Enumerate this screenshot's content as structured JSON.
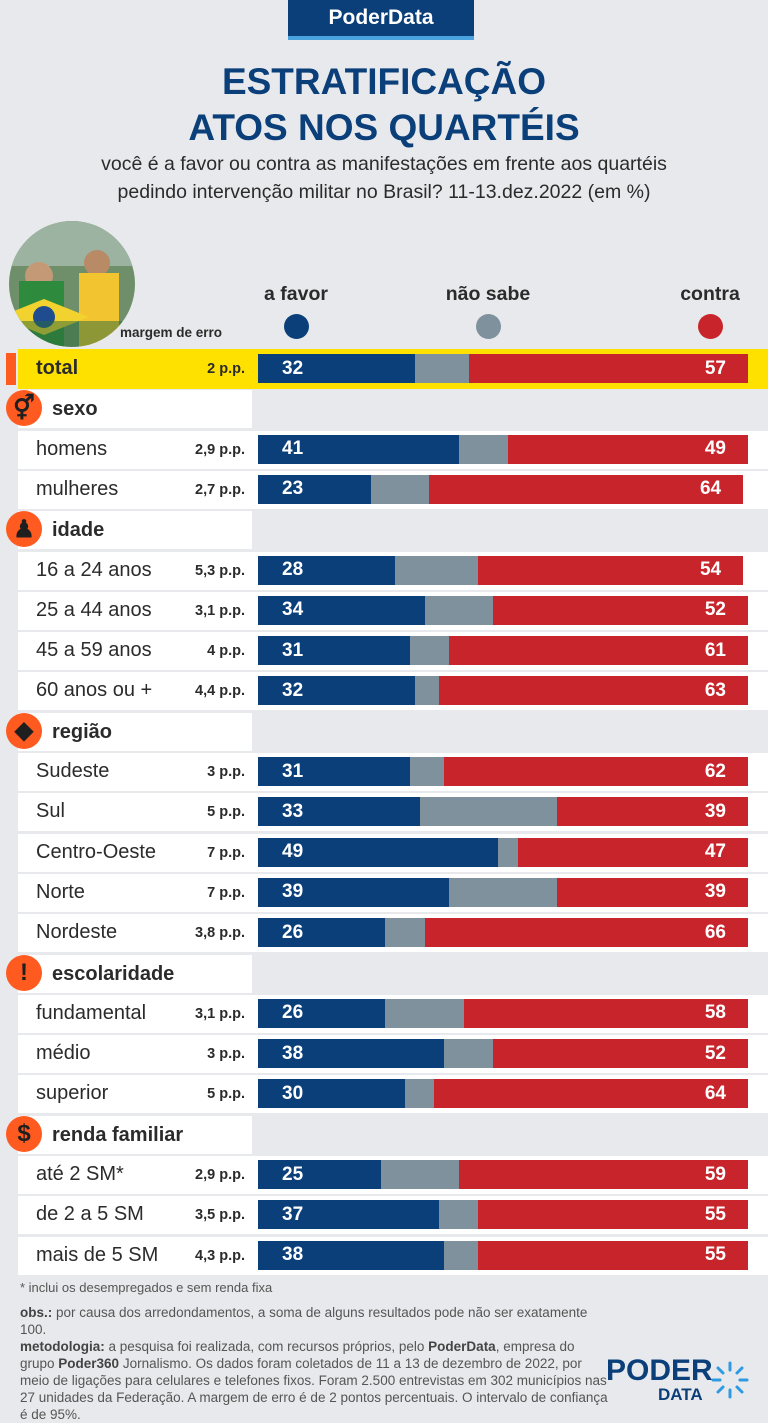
{
  "header": {
    "brand": "PoderData",
    "title_line1": "ESTRATIFICAÇÃO",
    "title_line2": "ATOS NOS QUARTÉIS",
    "subtitle_line1": "você é a favor ou contra as manifestações em frente aos quartéis",
    "subtitle_line2": "pedindo intervenção militar no Brasil?  11-13.dez.2022 (em %)",
    "margin_label": "margem de erro"
  },
  "legend": {
    "favor": {
      "label": "a favor",
      "color": "#0b3f7a"
    },
    "nao_sabe": {
      "label": "não sabe",
      "color": "#7e919c"
    },
    "contra": {
      "label": "contra",
      "color": "#c8242b"
    }
  },
  "chart_data": {
    "type": "bar",
    "stacked": true,
    "orientation": "horizontal",
    "series": [
      {
        "name": "a favor"
      },
      {
        "name": "não sabe"
      },
      {
        "name": "contra"
      }
    ],
    "sections": [
      {
        "label": "",
        "icon": "none",
        "rows": [
          {
            "label": "total",
            "margin": "2 p.p.",
            "favor": 32,
            "nao_sabe": 11,
            "contra": 57,
            "highlight": true
          }
        ]
      },
      {
        "label": "sexo",
        "icon": "gender-icon",
        "rows": [
          {
            "label": "homens",
            "margin": "2,9 p.p.",
            "favor": 41,
            "nao_sabe": 10,
            "contra": 49
          },
          {
            "label": "mulheres",
            "margin": "2,7 p.p.",
            "favor": 23,
            "nao_sabe": 12,
            "contra": 64
          }
        ]
      },
      {
        "label": "idade",
        "icon": "person-icon",
        "rows": [
          {
            "label": "16 a 24 anos",
            "margin": "5,3 p.p.",
            "favor": 28,
            "nao_sabe": 17,
            "contra": 54
          },
          {
            "label": "25 a 44 anos",
            "margin": "3,1 p.p.",
            "favor": 34,
            "nao_sabe": 14,
            "contra": 52
          },
          {
            "label": "45 a 59 anos",
            "margin": "4 p.p.",
            "favor": 31,
            "nao_sabe": 8,
            "contra": 61
          },
          {
            "label": "60 anos ou +",
            "margin": "4,4 p.p.",
            "favor": 32,
            "nao_sabe": 5,
            "contra": 63
          }
        ]
      },
      {
        "label": "região",
        "icon": "brazil-map-icon",
        "rows": [
          {
            "label": "Sudeste",
            "margin": "3 p.p.",
            "favor": 31,
            "nao_sabe": 7,
            "contra": 62
          },
          {
            "label": "Sul",
            "margin": "5 p.p.",
            "favor": 33,
            "nao_sabe": 28,
            "contra": 39
          },
          {
            "label": "Centro-Oeste",
            "margin": "7 p.p.",
            "favor": 49,
            "nao_sabe": 4,
            "contra": 47
          },
          {
            "label": "Norte",
            "margin": "7 p.p.",
            "favor": 39,
            "nao_sabe": 22,
            "contra": 39
          },
          {
            "label": "Nordeste",
            "margin": "3,8 p.p.",
            "favor": 26,
            "nao_sabe": 8,
            "contra": 66
          }
        ]
      },
      {
        "label": "escolaridade",
        "icon": "exclamation-icon",
        "rows": [
          {
            "label": "fundamental",
            "margin": "3,1 p.p.",
            "favor": 26,
            "nao_sabe": 16,
            "contra": 58
          },
          {
            "label": "médio",
            "margin": "3 p.p.",
            "favor": 38,
            "nao_sabe": 10,
            "contra": 52
          },
          {
            "label": "superior",
            "margin": "5 p.p.",
            "favor": 30,
            "nao_sabe": 6,
            "contra": 64
          }
        ]
      },
      {
        "label": "renda familiar",
        "icon": "dollar-icon",
        "rows": [
          {
            "label": "até 2 SM*",
            "margin": "2,9 p.p.",
            "favor": 25,
            "nao_sabe": 16,
            "contra": 59
          },
          {
            "label": "de 2 a 5 SM",
            "margin": "3,5 p.p.",
            "favor": 37,
            "nao_sabe": 8,
            "contra": 55
          },
          {
            "label": "mais de 5 SM",
            "margin": "4,3 p.p.",
            "favor": 38,
            "nao_sabe": 7,
            "contra": 55
          }
        ]
      }
    ],
    "xlim": [
      0,
      100
    ]
  },
  "footer": {
    "footnote": "* inclui os desempregados e sem renda fixa",
    "obs_label": "obs.:",
    "obs_text": " por causa dos arredondamentos, a soma de alguns resultados pode não ser exatamente 100.",
    "metodologia_label": "metodologia:",
    "metodologia_text_1": " a pesquisa foi realizada, com recursos próprios, pelo ",
    "metodologia_brand": "PoderData",
    "metodologia_text_2": ", empresa do grupo ",
    "metodologia_brand2": "Poder360",
    "metodologia_text_3": " Jornalismo. Os dados foram coletados de 11 a 13 de dezembro de 2022, por meio de ligações para celulares e telefones fixos. Foram 2.500 entrevistas em 302 municípios nas 27 unidades da Federação. A margem de erro é de 2 pontos percentuais. O intervalo de confiança é de 95%.",
    "logo_top": "PODER",
    "logo_bottom": "DATA"
  }
}
